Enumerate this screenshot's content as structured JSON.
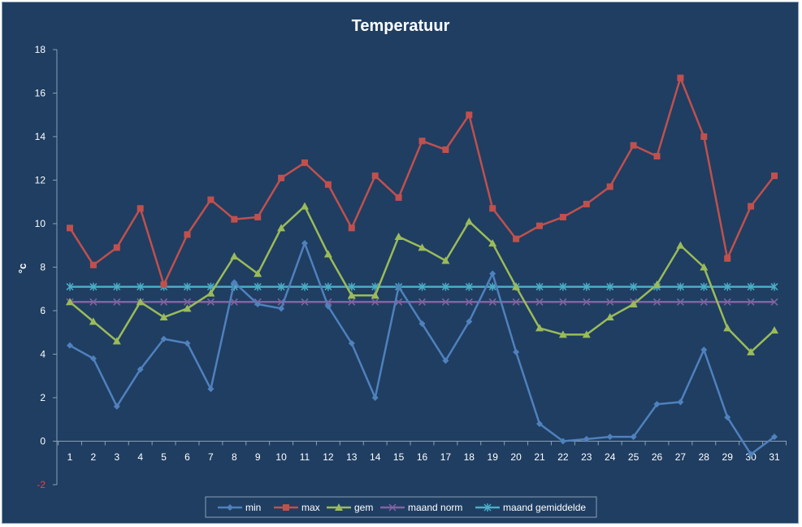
{
  "chart_data": {
    "type": "line",
    "title": "Temperatuur",
    "xlabel": "",
    "ylabel": "°c",
    "ylim": [
      -2,
      18
    ],
    "yticks": [
      -2,
      0,
      2,
      4,
      6,
      8,
      10,
      12,
      14,
      16,
      18
    ],
    "x": [
      1,
      2,
      3,
      4,
      5,
      6,
      7,
      8,
      9,
      10,
      11,
      12,
      13,
      14,
      15,
      16,
      17,
      18,
      19,
      20,
      21,
      22,
      23,
      24,
      25,
      26,
      27,
      28,
      29,
      30,
      31
    ],
    "grid": false,
    "legend": "bottom",
    "series": [
      {
        "name": "min",
        "color": "#4f81bd",
        "marker": "diamond",
        "values": [
          4.4,
          3.8,
          1.6,
          3.3,
          4.7,
          4.5,
          2.4,
          7.3,
          6.3,
          6.1,
          9.1,
          6.2,
          4.5,
          2.0,
          7.1,
          5.4,
          3.7,
          5.5,
          7.7,
          4.1,
          0.8,
          0.0,
          0.1,
          0.2,
          0.2,
          1.7,
          1.8,
          4.2,
          1.1,
          -0.6,
          0.2
        ]
      },
      {
        "name": "max",
        "color": "#c0504d",
        "marker": "square",
        "values": [
          9.8,
          8.1,
          8.9,
          10.7,
          7.2,
          9.5,
          11.1,
          10.2,
          10.3,
          12.1,
          12.8,
          11.8,
          9.8,
          12.2,
          11.2,
          13.8,
          13.4,
          15.0,
          10.7,
          9.3,
          9.9,
          10.3,
          10.9,
          11.7,
          13.6,
          13.1,
          16.7,
          14.0,
          8.4,
          10.8,
          12.2
        ]
      },
      {
        "name": "gem",
        "color": "#9bbb59",
        "marker": "triangle",
        "values": [
          6.4,
          5.5,
          4.6,
          6.4,
          5.7,
          6.1,
          6.8,
          8.5,
          7.7,
          9.8,
          10.8,
          8.6,
          6.7,
          6.7,
          9.4,
          8.9,
          8.3,
          10.1,
          9.1,
          7.1,
          5.2,
          4.9,
          4.9,
          5.7,
          6.3,
          7.2,
          9.0,
          8.0,
          5.2,
          4.1,
          5.1
        ]
      },
      {
        "name": "maand norm",
        "color": "#8064a2",
        "marker": "x",
        "values": [
          6.4,
          6.4,
          6.4,
          6.4,
          6.4,
          6.4,
          6.4,
          6.4,
          6.4,
          6.4,
          6.4,
          6.4,
          6.4,
          6.4,
          6.4,
          6.4,
          6.4,
          6.4,
          6.4,
          6.4,
          6.4,
          6.4,
          6.4,
          6.4,
          6.4,
          6.4,
          6.4,
          6.4,
          6.4,
          6.4,
          6.4
        ]
      },
      {
        "name": "maand gemiddelde",
        "color": "#4bacc6",
        "marker": "star",
        "values": [
          7.1,
          7.1,
          7.1,
          7.1,
          7.1,
          7.1,
          7.1,
          7.1,
          7.1,
          7.1,
          7.1,
          7.1,
          7.1,
          7.1,
          7.1,
          7.1,
          7.1,
          7.1,
          7.1,
          7.1,
          7.1,
          7.1,
          7.1,
          7.1,
          7.1,
          7.1,
          7.1,
          7.1,
          7.1,
          7.1,
          7.1
        ]
      }
    ],
    "colors": {
      "background": "#1f3e62",
      "axis": "#8aa0b8",
      "text": "#ffffff",
      "negative_tick": "#ff3b3b"
    }
  }
}
